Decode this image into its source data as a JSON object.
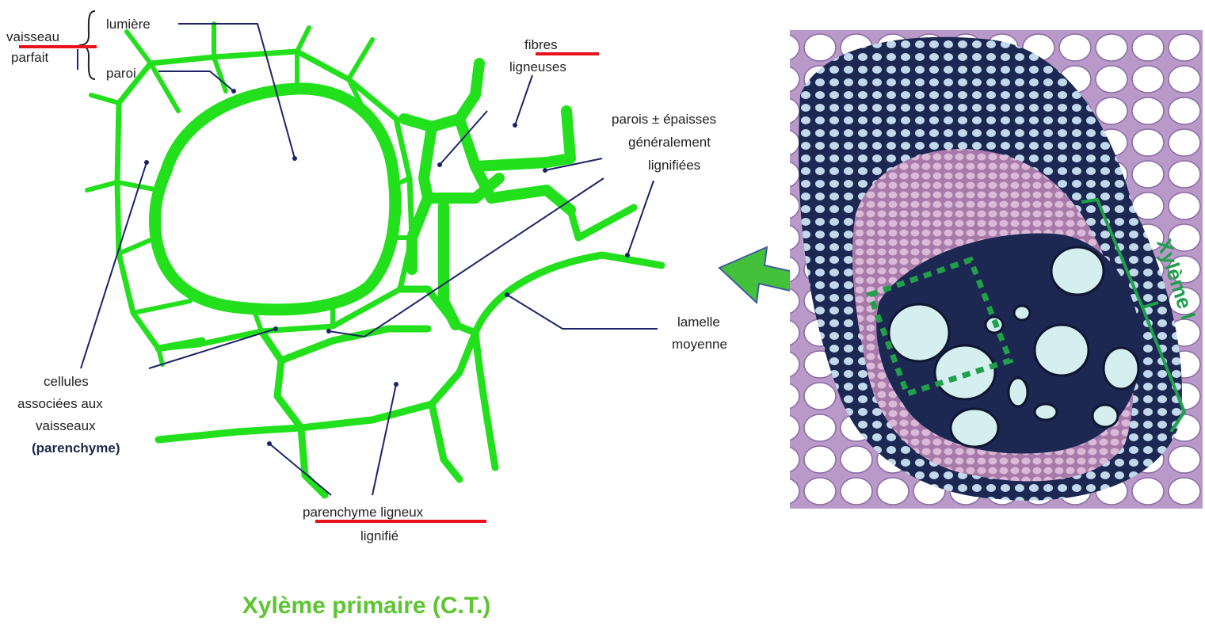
{
  "labels": {
    "vaisseau": "vaisseau",
    "parfait": "parfait",
    "lumiere": "lumière",
    "paroi": "paroi",
    "fibres": "fibres",
    "ligneuses": "ligneuses",
    "parois_line1": "parois ± épaisses",
    "parois_line2": "généralement",
    "parois_line3": "lignifiées",
    "lamelle": "lamelle",
    "moyenne": "moyenne",
    "cellules": "cellules",
    "associees": "associées aux",
    "vaisseaux": "vaisseaux",
    "parenchyme_paren": "(parenchyme)",
    "parenchyme_ligneux": "parenchyme ligneux",
    "lignifie": "lignifié",
    "xyleme_vertical": "Xylème I"
  },
  "caption": "Xylème primaire (C.T.)",
  "colors": {
    "wall_green": "#22e01c",
    "leader_line": "#1a2466",
    "underline_red": "#e8121c",
    "arrow_green": "#43c13b",
    "arrow_outline": "#3e5e9e",
    "dashed_box": "#1fa04a",
    "bracket_green": "#1fa04a",
    "stain_dark": "#1c2752",
    "stain_pink": "#c9a1c6",
    "cell_pale": "#d5eff0"
  }
}
